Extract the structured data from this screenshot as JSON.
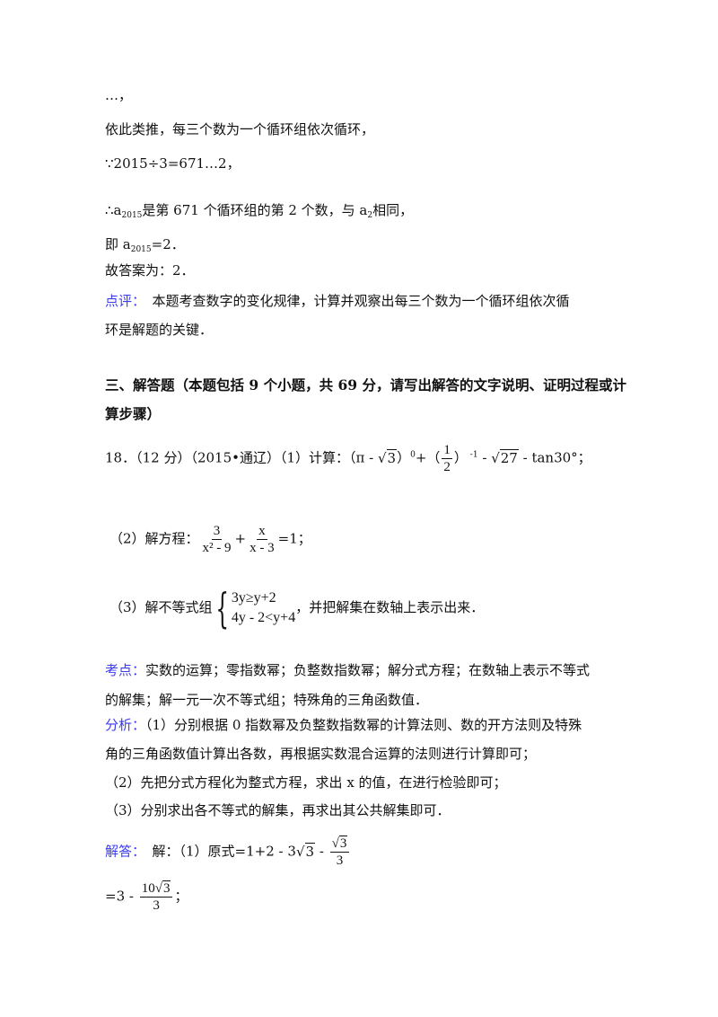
{
  "lines": {
    "ellipsis": "…，",
    "analogy": "依此类推，每三个数为一个循环组依次循环，",
    "because": "∵2015÷3=671…2，",
    "therefore_prefix": "∴a",
    "therefore_sub": "2015",
    "therefore_mid": "是第 671 个循环组的第 2 个数，与 a",
    "therefore_sub2": "2",
    "therefore_end": "相同，",
    "ie_prefix": "即 a",
    "ie_sub": "2015",
    "ie_end": "=2．",
    "answer": "故答案为：2．"
  },
  "review": {
    "label": "点评：",
    "text1": "　本题考查数字的变化规律，计算并观察出每三个数为一个循环组依次循",
    "text2": "环是解题的关键．"
  },
  "section": {
    "line1": "三、解答题（本题包括 9 个小题，共 69 分，请写出解答的文字说明、证明过程或计",
    "line2": "算步骤）"
  },
  "q18": {
    "head": "18．（12 分）（2015•通辽）（1）计算：（π - ",
    "sqrt3": "3",
    "p1": "）",
    "exp0": "0",
    "p2": "+（",
    "half_num": "1",
    "half_den": "2",
    "p3": "）",
    "expm1": " -1",
    "p4": " - ",
    "sqrt27": "27",
    "p5": " - tan30°；",
    "part2_label": "（2）解方程：",
    "f1_num": "3",
    "f1_den": "x² - 9",
    "plus": "+",
    "f2_num": "x",
    "f2_den": "x - 3",
    "eq_end": "=1；",
    "part3_label": "（3）解不等式组",
    "ineq1": "3y≥y+2",
    "ineq2": "4y - 2<y+4",
    "part3_end": "，并把解集在数轴上表示出来．"
  },
  "kaodian": {
    "label": "考点：",
    "text1": "实数的运算；零指数幂；负整数指数幂；解分式方程；在数轴上表示不等式",
    "text2": "的解集；解一元一次不等式组；特殊角的三角函数值．"
  },
  "fenxi": {
    "label": "分析：",
    "text1": "（1）分别根据 0 指数幂及负整数指数幂的计算法则、数的开方法则及特殊",
    "text2": "角的三角函数值计算出各数，再根据实数混合运算的法则进行计算即可；",
    "text3": "（2）先把分式方程化为整式方程，求出 x 的值，在进行检验即可；",
    "text4": "（3）分别求出各不等式的解集，再求出其公共解集即可．"
  },
  "jieda": {
    "label": "解答：",
    "text1": "　解：（1）原式=1+2 - 3",
    "sqrt3": "3",
    "minus": " - ",
    "frac_num_sqrt": "3",
    "frac_den": "3",
    "line2_prefix": "=3 - ",
    "f2_num_coef": "10",
    "f2_num_sqrt": "3",
    "f2_den": "3",
    "line2_end": "；"
  },
  "colors": {
    "label": "#3b3bf0",
    "text": "#111111"
  }
}
